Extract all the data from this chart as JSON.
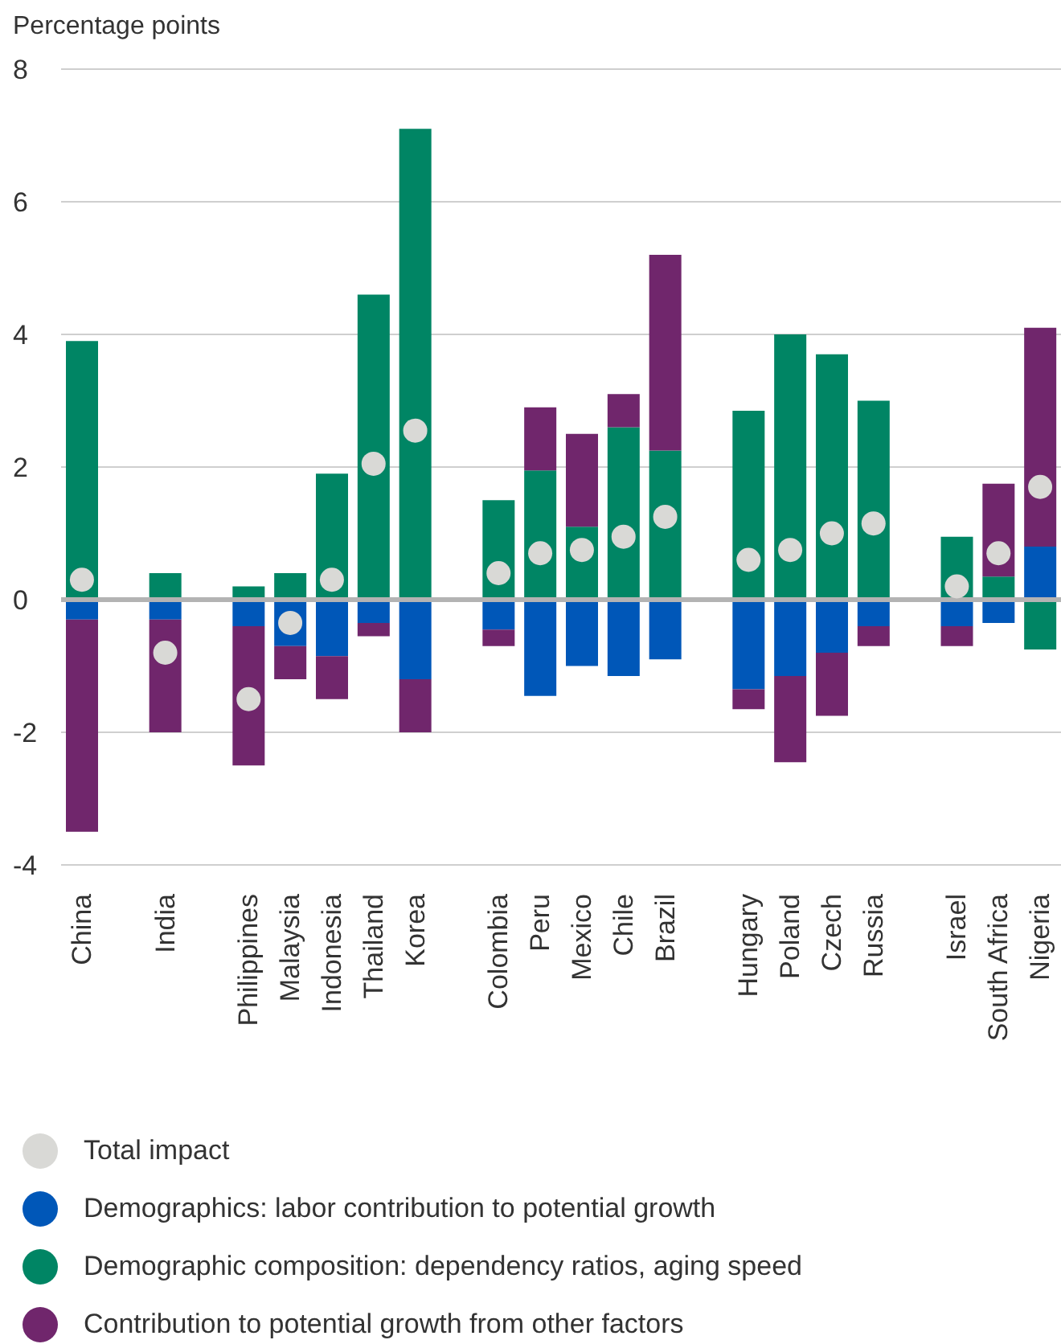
{
  "chart_data": {
    "type": "bar",
    "ylabel": "Percentage points",
    "stacked": true,
    "categories": [
      "China",
      null,
      "India",
      null,
      "Philippines",
      "Malaysia",
      "Indonesia",
      "Thailand",
      "Korea",
      null,
      "Colombia",
      "Peru",
      "Mexico",
      "Chile",
      "Brazil",
      null,
      "Hungary",
      "Poland",
      "Czech",
      "Russia",
      null,
      "Israel",
      "South Africa",
      "Nigeria"
    ],
    "series": [
      {
        "name": "Total impact",
        "type": "scatter",
        "color": "#d9d9d6",
        "values": [
          0.3,
          null,
          -0.8,
          null,
          -1.5,
          -0.35,
          0.3,
          2.05,
          2.55,
          null,
          0.4,
          0.7,
          0.75,
          0.95,
          1.25,
          null,
          0.6,
          0.75,
          1.0,
          1.15,
          null,
          0.2,
          0.7,
          1.7
        ]
      },
      {
        "name": "Demographics: labor contribution to potential growth",
        "color": "#0057b8",
        "values": [
          -0.3,
          null,
          -0.3,
          null,
          -0.4,
          -0.7,
          -0.85,
          -0.35,
          -1.2,
          null,
          -0.45,
          -1.45,
          -1.0,
          -1.15,
          -0.9,
          null,
          -1.35,
          -1.15,
          -0.8,
          -0.4,
          null,
          -0.4,
          -0.35,
          0.8
        ]
      },
      {
        "name": "Demographic composition: dependency ratios, aging speed",
        "color": "#008564",
        "values": [
          3.9,
          null,
          0.4,
          null,
          0.2,
          0.4,
          1.9,
          4.6,
          7.1,
          null,
          1.5,
          1.95,
          1.1,
          2.6,
          2.25,
          null,
          2.85,
          4.0,
          3.7,
          3.0,
          null,
          0.95,
          0.35,
          -0.75
        ]
      },
      {
        "name": "Contribution to potential growth from other factors",
        "color": "#70266c",
        "values": [
          -3.2,
          null,
          -1.7,
          null,
          -2.1,
          -0.5,
          -0.65,
          -0.2,
          -0.8,
          null,
          -0.25,
          0.95,
          1.4,
          0.5,
          2.95,
          null,
          -0.3,
          -1.3,
          -0.95,
          -0.3,
          null,
          -0.3,
          1.4,
          3.3
        ]
      }
    ],
    "ylim": [
      -4,
      8
    ],
    "yticks": [
      -4,
      -2,
      0,
      2,
      4,
      6,
      8
    ],
    "grid": "y",
    "legend": "bottom",
    "marker": "circle",
    "ref_lines": [
      {
        "axis": "y",
        "value": 0,
        "color": "#b3b3b3"
      }
    ]
  }
}
